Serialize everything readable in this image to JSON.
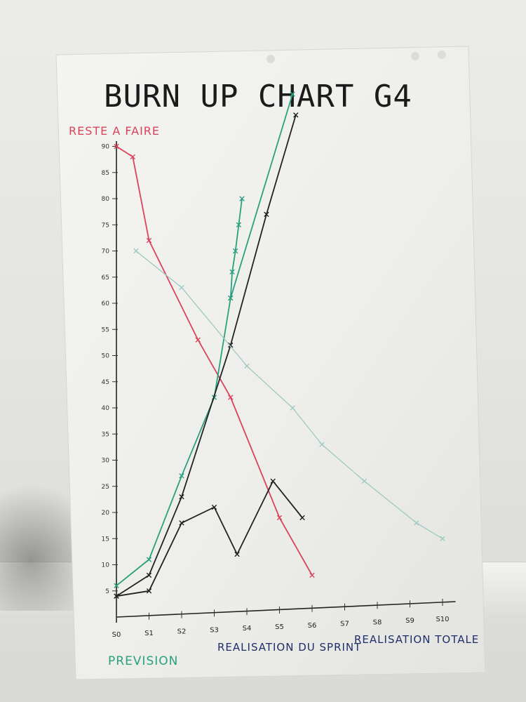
{
  "chart_data": {
    "type": "line",
    "title": "BURN UP CHART   G4",
    "ylabel": "RESTE A FAIRE",
    "ylim": [
      0,
      90
    ],
    "yticks": [
      5,
      10,
      15,
      20,
      25,
      30,
      35,
      40,
      45,
      50,
      55,
      60,
      65,
      70,
      75,
      80,
      85,
      90
    ],
    "x": [
      "S0",
      "S1",
      "S2",
      "S3",
      "S4",
      "S5",
      "S6",
      "S7",
      "S8",
      "S9",
      "S10"
    ],
    "xgroups": [
      "PREVISION",
      "REALISATION DU SPRINT",
      "REALISATION TOTALE"
    ],
    "series": [
      {
        "color": "#d9445b",
        "points": [
          [
            0,
            90
          ],
          [
            0.5,
            88
          ],
          [
            1,
            72
          ],
          [
            2.5,
            53
          ],
          [
            3.5,
            42
          ],
          [
            5,
            19
          ],
          [
            6,
            8
          ]
        ]
      },
      {
        "color": "#2aa07f",
        "points": [
          [
            0,
            6
          ],
          [
            1,
            11
          ],
          [
            2,
            27
          ],
          [
            3,
            42
          ],
          [
            3.5,
            61
          ],
          [
            5.4,
            100
          ]
        ]
      },
      {
        "color": "#2aa07f",
        "points": [
          [
            3.5,
            61
          ],
          [
            3.55,
            66
          ],
          [
            3.65,
            70
          ],
          [
            3.75,
            75
          ],
          [
            3.85,
            80
          ]
        ]
      },
      {
        "color": "#222222",
        "points": [
          [
            0,
            4
          ],
          [
            1,
            8
          ],
          [
            2,
            23
          ],
          [
            3.5,
            52
          ],
          [
            4.6,
            77
          ],
          [
            5.5,
            96
          ]
        ]
      },
      {
        "color": "#222222",
        "points": [
          [
            0,
            4
          ],
          [
            1,
            5
          ],
          [
            2,
            18
          ],
          [
            3,
            21
          ],
          [
            3.7,
            12
          ],
          [
            4.8,
            26
          ],
          [
            5.7,
            19
          ]
        ]
      },
      {
        "color": "#9fc9c4",
        "points": [
          [
            0.6,
            70
          ],
          [
            2,
            63
          ],
          [
            4,
            48
          ],
          [
            5.4,
            40
          ],
          [
            6.3,
            33
          ],
          [
            7.6,
            26
          ],
          [
            9.2,
            18
          ],
          [
            10,
            15
          ]
        ]
      }
    ]
  }
}
